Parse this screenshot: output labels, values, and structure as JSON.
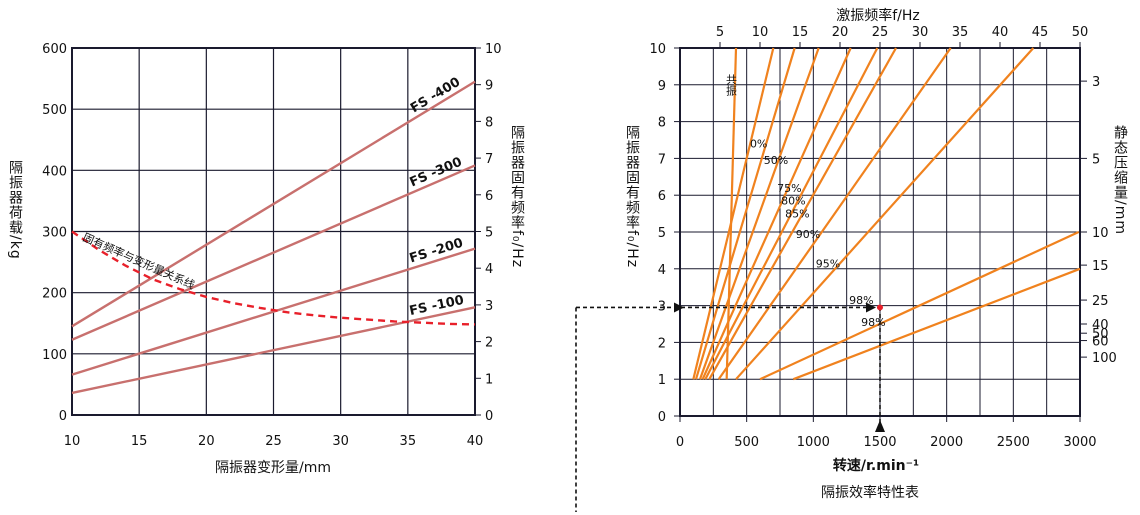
{
  "chart_data": [
    {
      "type": "line",
      "xlabel": "隔振器变形量/mm",
      "ylabel_left": "隔振器荷载/kg",
      "ylabel_right": "隔振器固有频率f₀/Hz",
      "xlim": [
        10,
        40
      ],
      "ylim_left": [
        0,
        600
      ],
      "ylim_right": [
        0,
        10
      ],
      "x_ticks": [
        10,
        15,
        20,
        25,
        30,
        35,
        40
      ],
      "y_left_ticks": [
        0,
        100,
        200,
        300,
        400,
        500,
        600
      ],
      "y_right_ticks": [
        0,
        1,
        2,
        3,
        4,
        5,
        6,
        7,
        8,
        9,
        10
      ],
      "grid": true,
      "series_color": "#c8706e",
      "series": [
        {
          "name": "FS -400",
          "x": [
            10,
            40
          ],
          "y": [
            145,
            545
          ]
        },
        {
          "name": "FS -300",
          "x": [
            10,
            40
          ],
          "y": [
            123,
            408
          ]
        },
        {
          "name": "FS -200",
          "x": [
            10,
            40
          ],
          "y": [
            66,
            272
          ]
        },
        {
          "name": "FS -100",
          "x": [
            10,
            40
          ],
          "y": [
            36,
            176
          ]
        }
      ],
      "curve": {
        "name": "固有频率与变形量关系线",
        "color": "#e8202a",
        "x": [
          10,
          12,
          14,
          16,
          18,
          20,
          22,
          24,
          26,
          28,
          30,
          32,
          34,
          36,
          38,
          40
        ],
        "y": [
          300,
          270,
          244,
          222,
          206,
          193,
          183,
          175,
          168,
          163,
          159,
          156,
          153,
          151,
          149,
          148
        ]
      }
    },
    {
      "type": "line",
      "title": "隔振效率特性表",
      "xlabel": "转速/r.min⁻¹",
      "ylabel_left": "隔振器固有频率f₀/Hz",
      "top_label": "激振频率f/Hz",
      "ylabel_right": "静态压缩量/mm",
      "xlim": [
        0,
        3000
      ],
      "ylim": [
        0,
        10
      ],
      "x_ticks": [
        0,
        500,
        1000,
        1500,
        2000,
        2500,
        3000
      ],
      "y_ticks": [
        0,
        1,
        2,
        3,
        4,
        5,
        6,
        7,
        8,
        9,
        10
      ],
      "top_ticks": [
        5,
        10,
        15,
        20,
        25,
        30,
        35,
        40,
        45,
        50
      ],
      "right_ticks": [
        {
          "label": "3",
          "f0": 9.1
        },
        {
          "label": "5",
          "f0": 7.0
        },
        {
          "label": "10",
          "f0": 5.0
        },
        {
          "label": "15",
          "f0": 4.1
        },
        {
          "label": "25",
          "f0": 3.15
        },
        {
          "label": "40",
          "f0": 2.5
        },
        {
          "label": "50",
          "f0": 2.25
        },
        {
          "label": "60",
          "f0": 2.05
        },
        {
          "label": "100",
          "f0": 1.6
        }
      ],
      "grid": true,
      "line_color": "#f0821e",
      "resonance_label": "共振",
      "efficiency_lines": [
        {
          "label": "",
          "x": [
            350,
            420
          ],
          "y": [
            1,
            10
          ]
        },
        {
          "label": "0%",
          "x": [
            100,
            700
          ],
          "y": [
            1,
            10
          ]
        },
        {
          "label": "50%",
          "x": [
            120,
            860
          ],
          "y": [
            1,
            10
          ]
        },
        {
          "label": "75%",
          "x": [
            150,
            1040
          ],
          "y": [
            1,
            10
          ]
        },
        {
          "label": "80%",
          "x": [
            170,
            1280
          ],
          "y": [
            1,
            10
          ]
        },
        {
          "label": "85%",
          "x": [
            190,
            1480
          ],
          "y": [
            1,
            10
          ]
        },
        {
          "label": "90%",
          "x": [
            220,
            1620
          ],
          "y": [
            1,
            10
          ]
        },
        {
          "label": "95%",
          "x": [
            290,
            2030
          ],
          "y": [
            1,
            10
          ]
        },
        {
          "label": "98%",
          "x": [
            420,
            2650
          ],
          "y": [
            1,
            10
          ]
        },
        {
          "label": "",
          "x": [
            600,
            2990
          ],
          "y": [
            1,
            5
          ]
        },
        {
          "label": "98%",
          "x": [
            850,
            3000
          ],
          "y": [
            1,
            4
          ]
        }
      ],
      "efficiency_labels": [
        {
          "text": "0%",
          "x": 590,
          "f0": 7.4
        },
        {
          "text": "50%",
          "x": 720,
          "f0": 6.95
        },
        {
          "text": "75%",
          "x": 820,
          "f0": 6.2
        },
        {
          "text": "80%",
          "x": 850,
          "f0": 5.85
        },
        {
          "text": "85%",
          "x": 880,
          "f0": 5.5
        },
        {
          "text": "90%",
          "x": 960,
          "f0": 4.95
        },
        {
          "text": "95%",
          "x": 1110,
          "f0": 4.15
        },
        {
          "text": "98%",
          "x": 1360,
          "f0": 3.15
        },
        {
          "text": "98%",
          "x": 1450,
          "f0": 2.55
        }
      ],
      "example_point": {
        "rpm": 1500,
        "f0": 2.95
      },
      "marker_color": "#e8202a"
    }
  ]
}
